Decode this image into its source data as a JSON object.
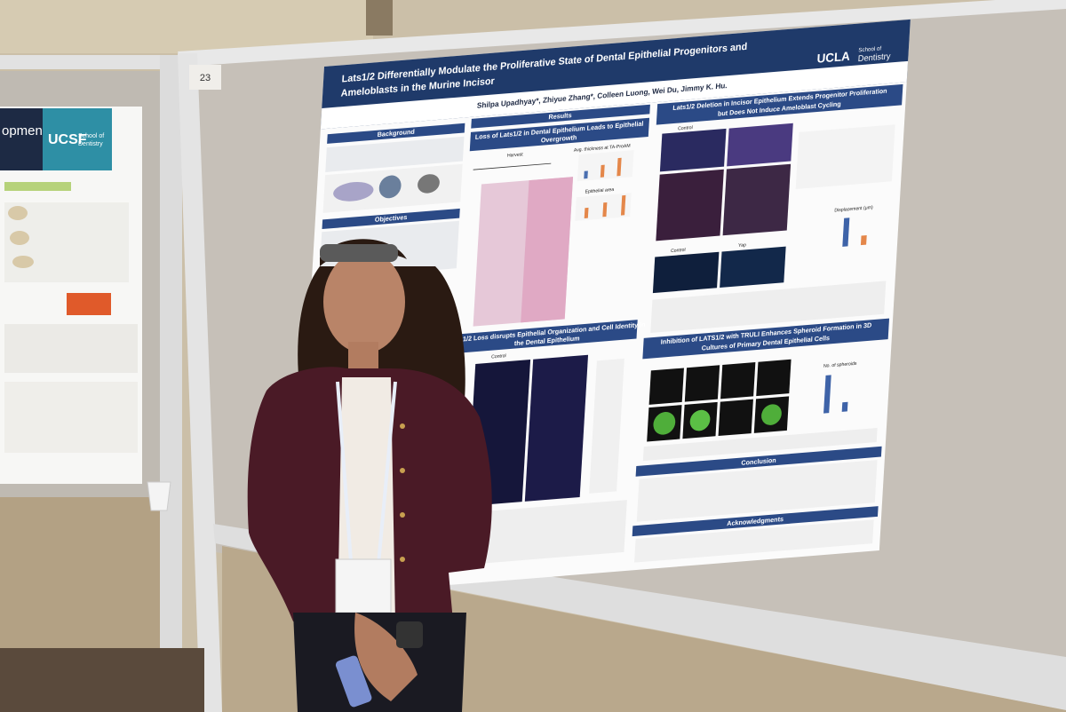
{
  "board_number": "23",
  "poster": {
    "title": [
      "Lats1/2 Differentially Modulate the Proliferative State of Dental Epithelial Progenitors and",
      "Ameloblasts in the Murine Incisor"
    ],
    "authors": "Shilpa Upadhyay*, Zhiyue Zhang*, Colleen Luong, Wei Du, Jimmy K. Hu.",
    "logo": {
      "name": "UCLA",
      "school": "School of",
      "school_line2": "Dentistry"
    },
    "sections": {
      "background": "Background",
      "objectives": "Objectives",
      "results": "Results",
      "overgrowth": [
        "Loss of Lats1/2 in Dental Epithelium Leads to Epithelial",
        "Overgrowth"
      ],
      "proliferation": [
        "Lats1/2 Deletion in Incisor Epithelium Extends Progenitor Proliferation",
        "but Does Not Induce Ameloblast Cycling"
      ],
      "organization": [
        "Lats1/2 Loss disrupts Epithelial Organization and Cell Identity in",
        "the Dental Epithelium"
      ],
      "truli": [
        "Inhibition of LATS1/2 with TRULI Enhances Spheroid Formation in 3D",
        "Cultures of Primary Dental Epithelial Cells"
      ],
      "conclusion": "Conclusion",
      "acknowledgments": "Acknowledgments"
    },
    "chart_labels": {
      "thickness": "Avg. thickness at TA-ProAM",
      "area": "Epithelial area",
      "control": "Control",
      "yap": "Yap",
      "harvest": "Harvest",
      "spheroids": "No. of spheroids",
      "displacement": "Displacement (μm)"
    }
  },
  "side_poster": {
    "title_fragment": "opment",
    "logo": {
      "name": "UCSF",
      "school": "School of",
      "school_line2": "Dentistry"
    }
  }
}
